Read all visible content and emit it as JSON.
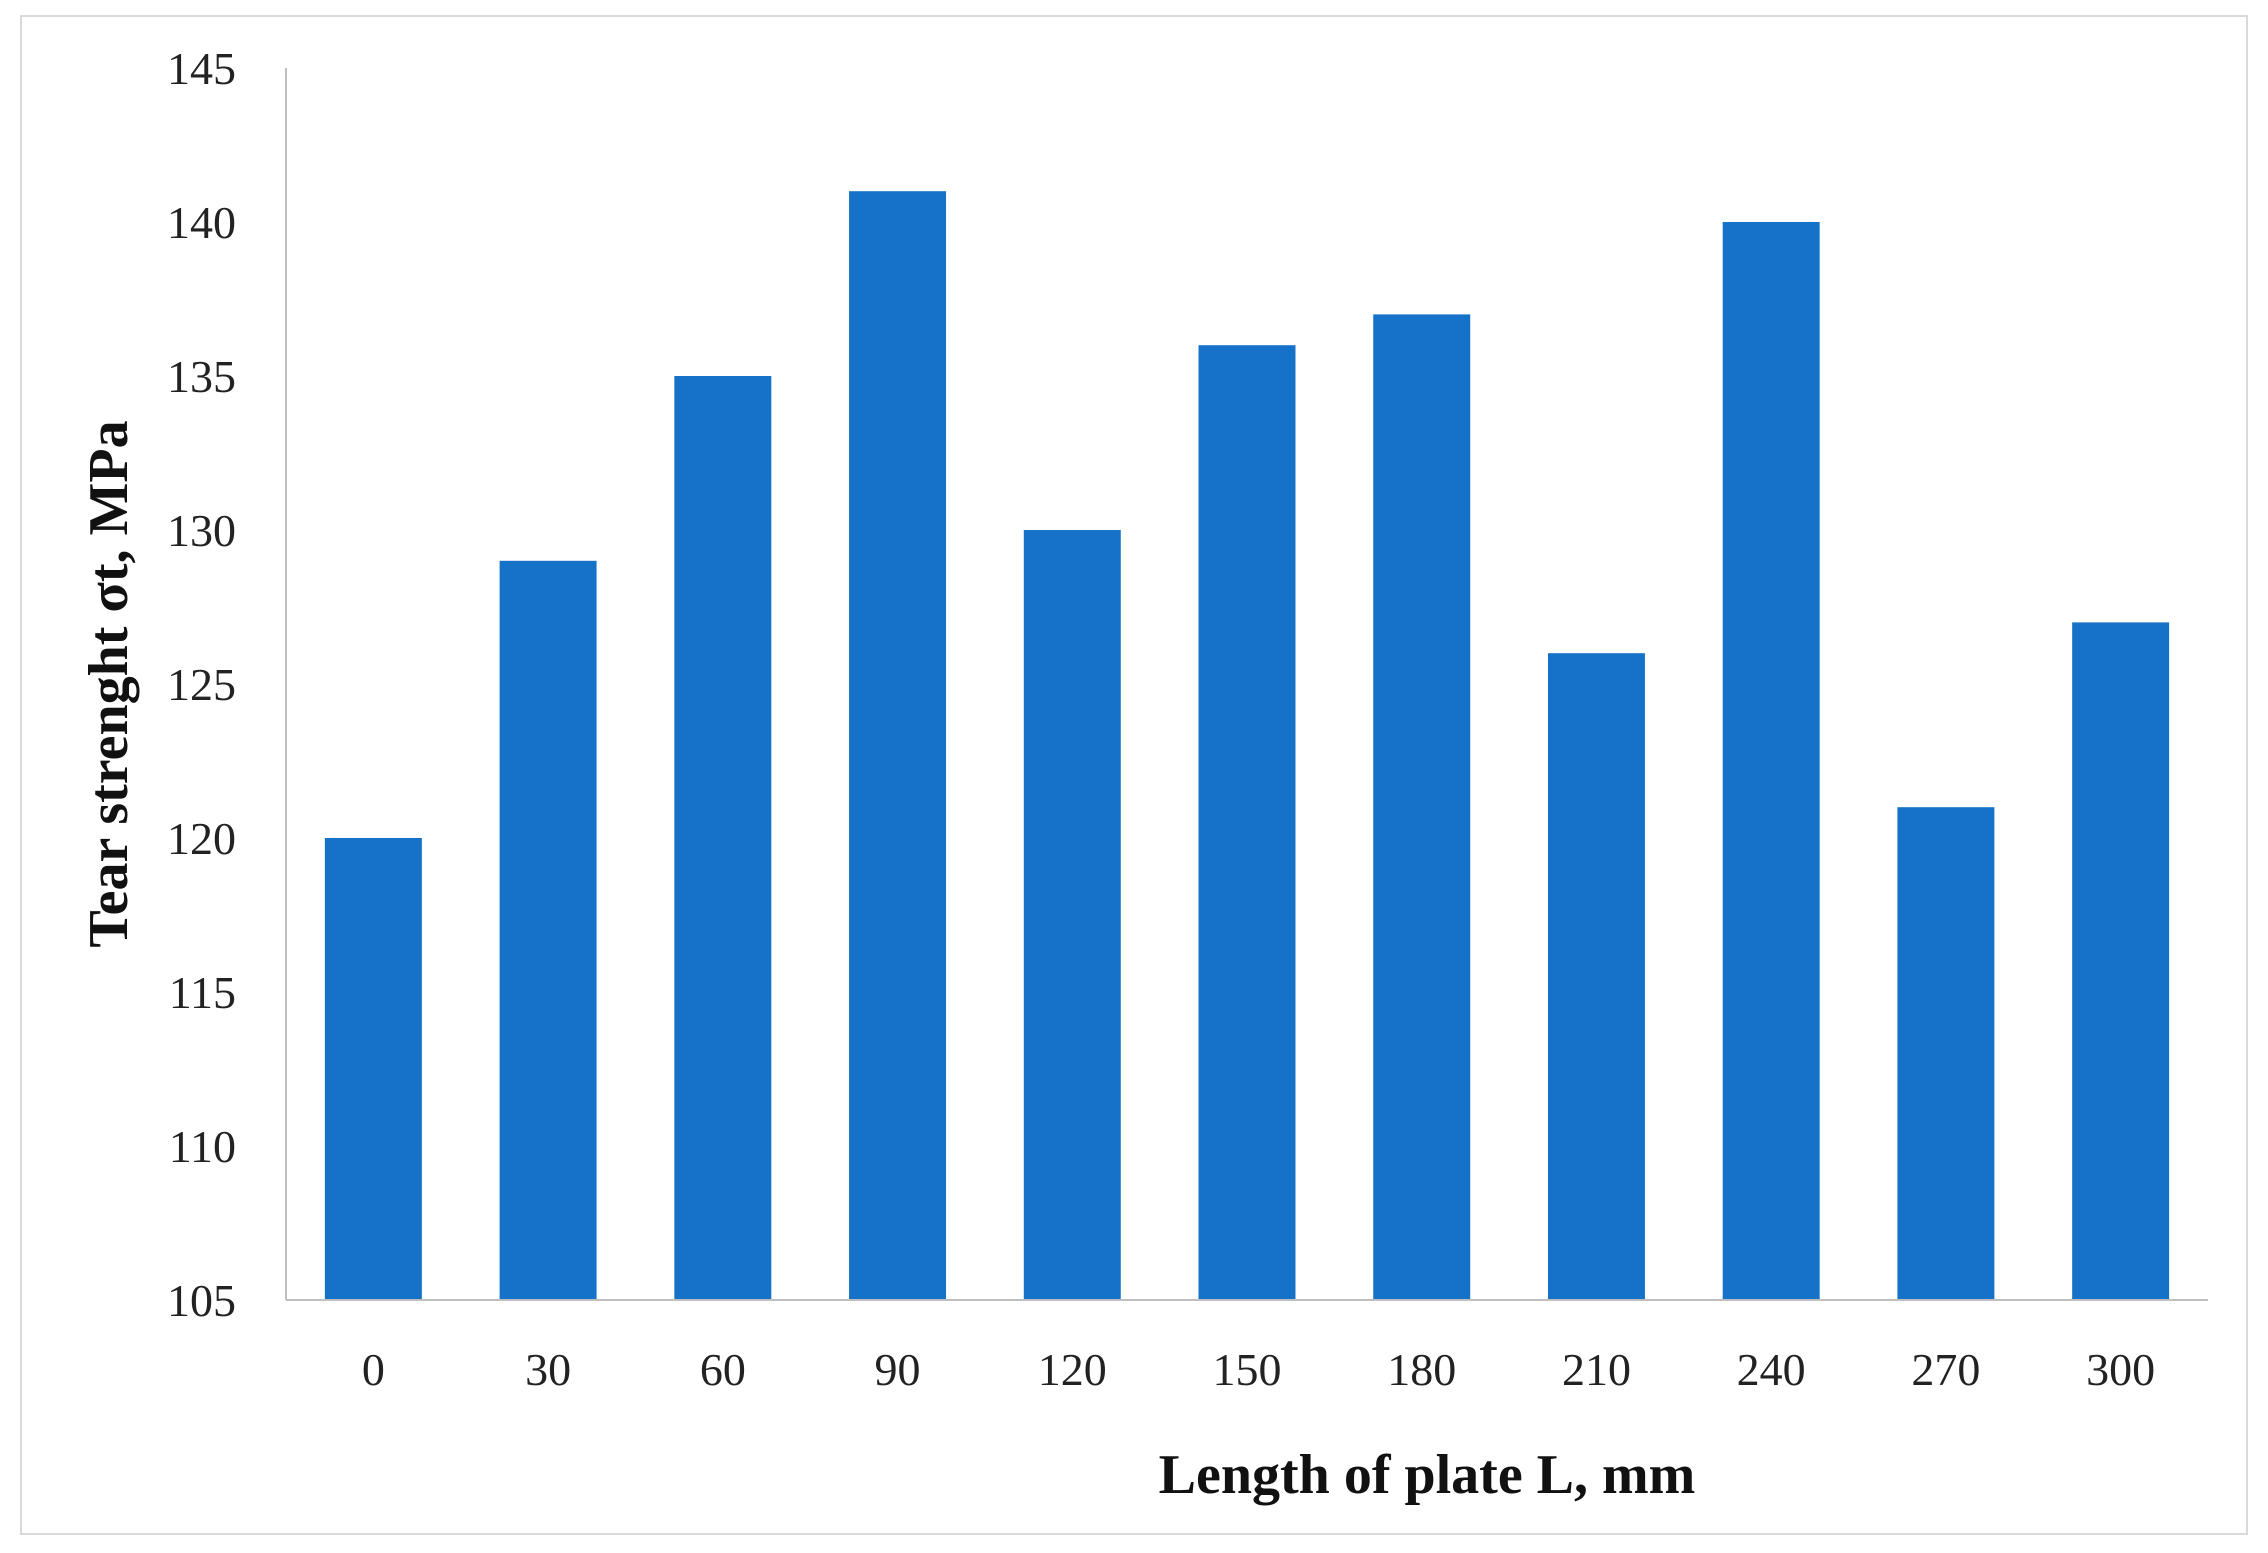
{
  "chart_data": {
    "type": "bar",
    "title": "",
    "xlabel": "Length of plate L, mm",
    "ylabel": "Tear strenght σt, MPa",
    "categories": [
      "0",
      "30",
      "60",
      "90",
      "120",
      "150",
      "180",
      "210",
      "240",
      "270",
      "300"
    ],
    "series": [
      {
        "values": [
          120,
          129,
          135,
          141,
          130,
          136,
          137,
          126,
          140,
          121,
          127
        ]
      }
    ],
    "ylim": [
      105,
      145
    ],
    "yticks": [
      "105",
      "110",
      "115",
      "120",
      "125",
      "130",
      "135",
      "140",
      "145"
    ],
    "grid": false,
    "legend": "none",
    "bar_color": "#1572C8"
  }
}
